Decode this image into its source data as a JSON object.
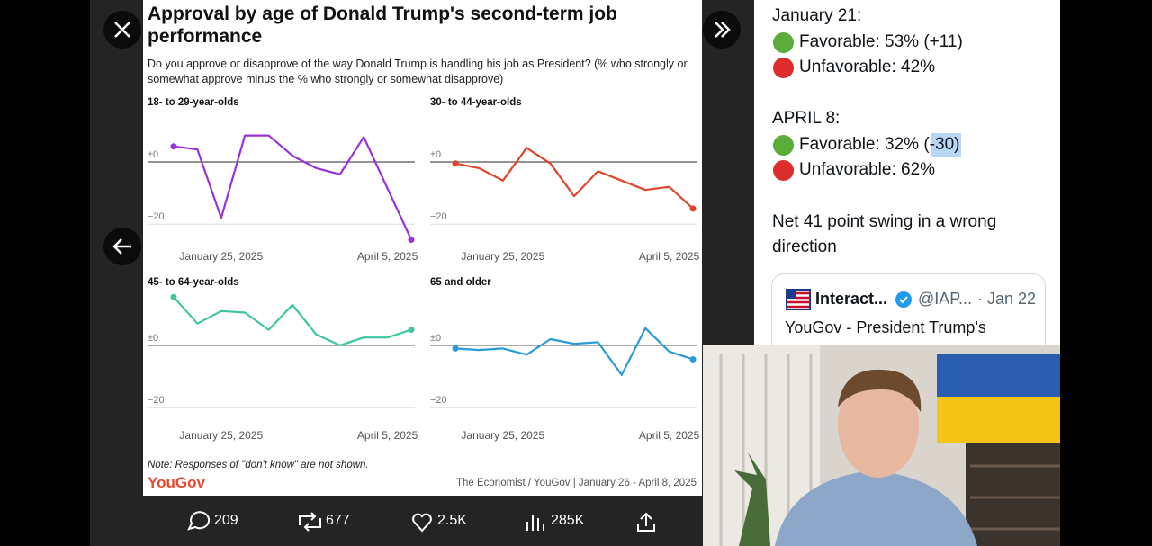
{
  "card": {
    "title": "Approval by age of Donald Trump's second-term job performance",
    "subtitle": "Do you approve or disapprove of the way Donald Trump is handling his job as President? (% who strongly or somewhat approve minus the % who strongly or somewhat disapprove)",
    "note": "Note: Responses of \"don't know\" are not shown.",
    "brand": "YouGov",
    "source": "The Economist / YouGov | January 26 - April 8, 2025"
  },
  "chart_data": [
    {
      "type": "line",
      "title": "18- to 29-year-olds",
      "color": "#9b30d9",
      "categories": [
        null,
        null,
        "January 25, 2025",
        null,
        null,
        null,
        null,
        null,
        null,
        "April 5, 2025",
        null
      ],
      "values": [
        5,
        4,
        -18,
        8.5,
        8.5,
        2,
        -2,
        -4,
        8,
        -8.5,
        -25
      ],
      "ylim": [
        -26,
        13
      ],
      "yticks": [
        {
          "value": 0,
          "label": "±0"
        },
        {
          "value": -20,
          "label": "−20"
        }
      ]
    },
    {
      "type": "line",
      "title": "30- to 44-year-olds",
      "color": "#e0442b",
      "categories": [
        null,
        null,
        "January 25, 2025",
        null,
        null,
        null,
        null,
        null,
        null,
        "April 5, 2025",
        null
      ],
      "values": [
        -0.5,
        -2,
        -6,
        4.5,
        -0.5,
        -11,
        -3,
        -6,
        -9,
        -8,
        -15
      ],
      "ylim": [
        -26,
        13
      ],
      "yticks": [
        {
          "value": 0,
          "label": "±0"
        },
        {
          "value": -20,
          "label": "−20"
        }
      ]
    },
    {
      "type": "line",
      "title": "45- to 64-year-olds",
      "color": "#3cc6a4",
      "categories": [
        null,
        null,
        "January 25, 2025",
        null,
        null,
        null,
        null,
        null,
        null,
        "April 5, 2025",
        null
      ],
      "values": [
        15.5,
        7,
        11,
        10.5,
        5,
        13,
        3.5,
        0,
        2.5,
        2.5,
        5
      ],
      "ylim": [
        -26,
        17
      ],
      "yticks": [
        {
          "value": 0,
          "label": "±0"
        },
        {
          "value": -20,
          "label": "−20"
        }
      ]
    },
    {
      "type": "line",
      "title": "65 and older",
      "color": "#2b9bd6",
      "categories": [
        null,
        null,
        "January 25, 2025",
        null,
        null,
        null,
        null,
        null,
        null,
        "April 5, 2025",
        null
      ],
      "values": [
        -1,
        -1.5,
        -1,
        -3,
        2,
        0.5,
        1,
        -9.5,
        5.5,
        -2,
        -4.5
      ],
      "ylim": [
        -26,
        17
      ],
      "yticks": [
        {
          "value": 0,
          "label": "±0"
        },
        {
          "value": -20,
          "label": "−20"
        }
      ]
    }
  ],
  "post": {
    "lines": [
      "January 21:",
      "Favorable: 53% (+11)",
      "Unfavorable: 42%",
      "APRIL 8:",
      "Favorable: 32% (-30)",
      "Unfavorable: 62%",
      "Net 41 point swing in a wrong direction"
    ],
    "quote": {
      "name": "Interact...",
      "handle": "@IAP...",
      "date": "· Jan 22",
      "text": "YouGov - President Trump's"
    }
  },
  "actions": {
    "replies": "209",
    "reposts": "677",
    "likes": "2.5K",
    "views": "285K"
  }
}
